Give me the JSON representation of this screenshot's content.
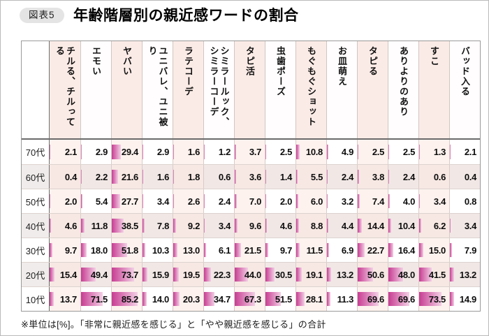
{
  "figure": {
    "badge": "図表5",
    "title": "年齢階層別の親近感ワードの割合",
    "footnote": "※単位は[%]。「非常に親近感を感じる」と「やや親近感を感じる」の合計"
  },
  "chart_data": {
    "type": "table",
    "subtype": "table-with-bars",
    "unit": "%",
    "bar_scale_max": 100,
    "columns": [
      "チルる、チルってる",
      "エモい",
      "ヤバい",
      "ユニバレ、ユニ被り",
      "ラテコーデ",
      "シミラールック、シミラーコーデ",
      "タピ活",
      "虫歯ポーズ",
      "もぐもぐショット",
      "お皿萌え",
      "タピる",
      "ありよりのあり",
      "すこ",
      "バッド入る"
    ],
    "rows": [
      {
        "label": "70代",
        "values": [
          2.1,
          2.9,
          29.4,
          2.9,
          1.6,
          1.2,
          3.7,
          2.5,
          10.8,
          4.9,
          2.5,
          2.5,
          1.3,
          2.1
        ]
      },
      {
        "label": "60代",
        "values": [
          0.4,
          2.2,
          21.6,
          1.6,
          1.8,
          0.6,
          3.6,
          1.4,
          5.5,
          2.4,
          3.8,
          2.4,
          0.6,
          0.4
        ]
      },
      {
        "label": "50代",
        "values": [
          2.0,
          5.4,
          27.7,
          3.4,
          2.6,
          2.4,
          7.0,
          2.0,
          6.0,
          3.2,
          7.4,
          4.0,
          3.4,
          0.8
        ]
      },
      {
        "label": "40代",
        "values": [
          4.6,
          11.8,
          38.5,
          7.8,
          9.2,
          3.4,
          9.6,
          4.6,
          8.8,
          4.4,
          14.4,
          10.4,
          6.2,
          3.4
        ]
      },
      {
        "label": "30代",
        "values": [
          9.7,
          18.0,
          51.8,
          10.3,
          13.0,
          6.1,
          21.5,
          9.7,
          11.5,
          6.9,
          22.7,
          16.4,
          15.0,
          7.9
        ]
      },
      {
        "label": "20代",
        "values": [
          15.4,
          49.4,
          73.7,
          15.9,
          19.5,
          22.3,
          44.0,
          30.5,
          19.1,
          13.2,
          50.6,
          48.0,
          41.5,
          13.2
        ]
      },
      {
        "label": "10代",
        "values": [
          13.7,
          71.5,
          85.2,
          14.0,
          20.3,
          34.7,
          67.3,
          51.5,
          28.1,
          11.3,
          69.6,
          69.6,
          73.5,
          14.9
        ]
      }
    ],
    "palette": {
      "bar_gradient_start": "#c73d92",
      "bar_gradient_end": "#f3cfe5",
      "header_col_pink": "#fbebe6",
      "header_col_white": "#fffdfd",
      "row_light_col_pink": "#fdf2ee",
      "row_light_col_white": "#ffffff",
      "row_dark_col_pink": "#f7e8e3",
      "row_dark_col_white": "#f1e8e6",
      "label_row_dark": "#efeceb",
      "strong_line": "#6b6b6b",
      "column_separator": "#d8ccc8",
      "badge_background": "#e4e4e4"
    },
    "layout": {
      "legend": "none",
      "grid": "table-borders",
      "bars": "left-anchored horizontal, width = value% of cell"
    }
  }
}
